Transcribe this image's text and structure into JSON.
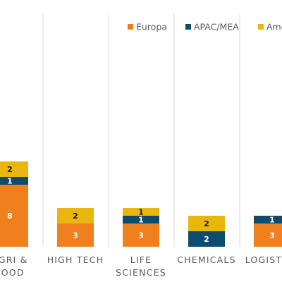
{
  "chart_data": {
    "type": "bar",
    "stacked": true,
    "categories": [
      "AGRI & FOOD",
      "HIGH TECH",
      "LIFE SCIENCES",
      "CHEMICALS",
      "LOGISTICS"
    ],
    "category_lines": [
      [
        "AGRI &",
        "FOOD"
      ],
      [
        "HIGH TECH"
      ],
      [
        "LIFE",
        "SCIENCES"
      ],
      [
        "CHEMICALS"
      ],
      [
        "LOGISTICS"
      ]
    ],
    "series": [
      {
        "name": "Europa",
        "color": "#F07F1E",
        "values": [
          8,
          3,
          3,
          0,
          3
        ]
      },
      {
        "name": "APAC/MEA",
        "color": "#0D4C6F",
        "values": [
          1,
          0,
          1,
          2,
          1
        ]
      },
      {
        "name": "Amerika",
        "color": "#E8B60E",
        "values": [
          2,
          2,
          1,
          2,
          0
        ]
      }
    ],
    "ylim": [
      0,
      30
    ],
    "grid": "vertical-separators",
    "legend": "top-right"
  }
}
